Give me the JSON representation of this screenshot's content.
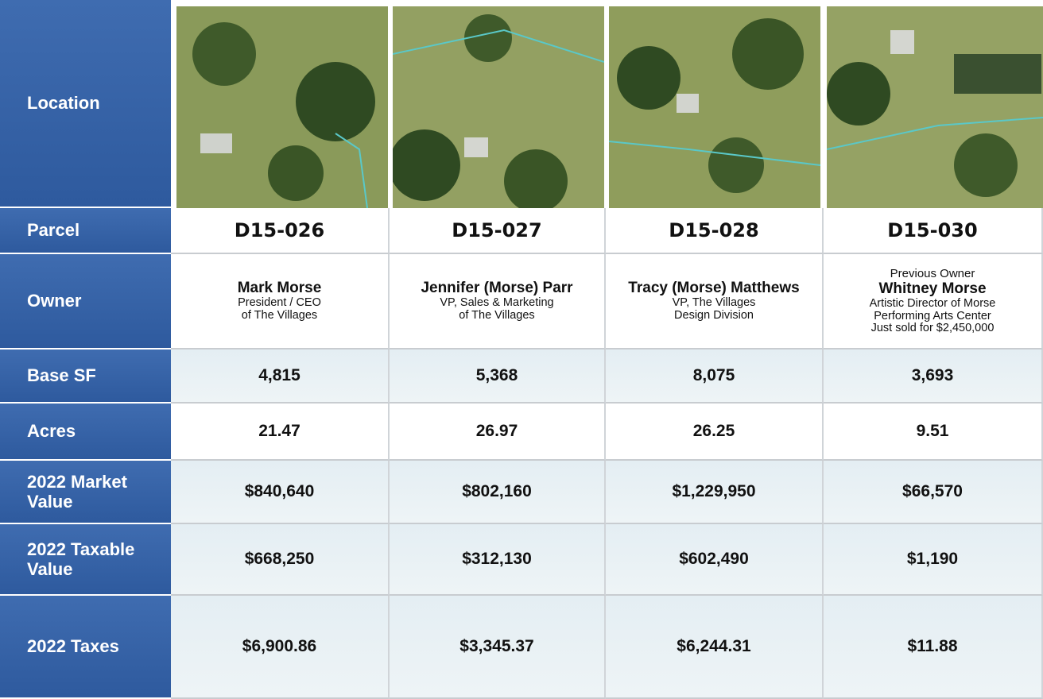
{
  "table": {
    "rows": [
      {
        "label": "Location"
      },
      {
        "label": "Parcel",
        "cells": [
          "D15-026",
          "D15-027",
          "D15-028",
          "D15-030"
        ]
      },
      {
        "label": "Owner",
        "cells": [
          {
            "name": "Mark Morse",
            "lines": [
              "President / CEO",
              "of The Villages"
            ]
          },
          {
            "name": "Jennifer (Morse) Parr",
            "lines": [
              "VP, Sales & Marketing",
              "of The Villages"
            ]
          },
          {
            "name": "Tracy (Morse) Matthews",
            "lines": [
              "VP, The Villages",
              "Design Division"
            ]
          },
          {
            "pre": "Previous Owner",
            "name": "Whitney Morse",
            "lines": [
              "Artistic Director of Morse",
              "Performing Arts Center",
              "Just sold for $2,450,000"
            ]
          }
        ]
      },
      {
        "label": "Base SF",
        "cells": [
          "4,815",
          "5,368",
          "8,075",
          "3,693"
        ]
      },
      {
        "label": "Acres",
        "cells": [
          "21.47",
          "26.97",
          "26.25",
          "9.51"
        ]
      },
      {
        "label": "2022 Market Value",
        "cells": [
          "$840,640",
          "$802,160",
          "$1,229,950",
          "$66,570"
        ]
      },
      {
        "label": "2022 Taxable Value",
        "cells": [
          "$668,250",
          "$312,130",
          "$602,490",
          "$1,190"
        ]
      },
      {
        "label": "2022 Taxes",
        "cells": [
          "$6,900.86",
          "$3,345.37",
          "$6,244.31",
          "$11.88"
        ]
      }
    ]
  }
}
